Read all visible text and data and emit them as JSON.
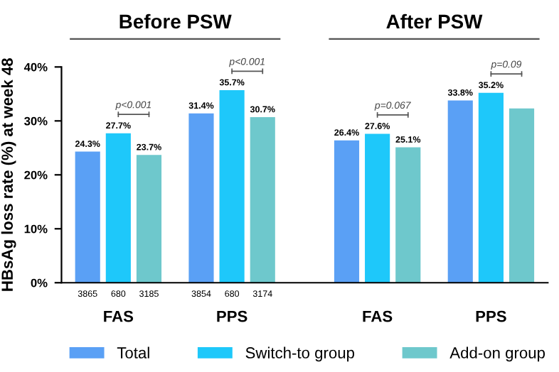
{
  "chart_data": {
    "type": "bar",
    "ylabel": "HBsAg loss rate (%) at week 48",
    "categories": [
      "FAS",
      "PPS",
      "FAS",
      "PPS"
    ],
    "series": [
      {
        "name": "Total",
        "color": "#5aa0f5",
        "values": [
          24.3,
          31.4,
          26.4,
          33.8
        ],
        "value_labels": [
          "24.3%",
          "31.4%",
          "26.4%",
          "33.8%"
        ]
      },
      {
        "name": "Switch-to group",
        "color": "#1ec8fa",
        "values": [
          27.7,
          35.7,
          27.6,
          35.2
        ],
        "value_labels": [
          "27.7%",
          "35.7%",
          "27.6%",
          "35.2%"
        ]
      },
      {
        "name": "Add-on group",
        "color": "#6ec8cc",
        "values": [
          23.7,
          30.7,
          25.1,
          32.3
        ],
        "value_labels": [
          "23.7%",
          "30.7%",
          "25.1%",
          null
        ]
      }
    ],
    "ylim": [
      0,
      40
    ],
    "yticks": [
      {
        "value": 0,
        "label": "0%"
      },
      {
        "value": 10,
        "label": "10%"
      },
      {
        "value": 20,
        "label": "20%"
      },
      {
        "value": 30,
        "label": "30%"
      },
      {
        "value": 40,
        "label": "40%"
      }
    ],
    "annotations": [
      "Before PSW",
      "After PSW",
      "3865",
      "680",
      "3185",
      "3854",
      "680",
      "3174",
      "p<0.001",
      "p<0.001",
      "p=0.067",
      "p=0.09"
    ],
    "legend": "bottom",
    "grid": false
  }
}
